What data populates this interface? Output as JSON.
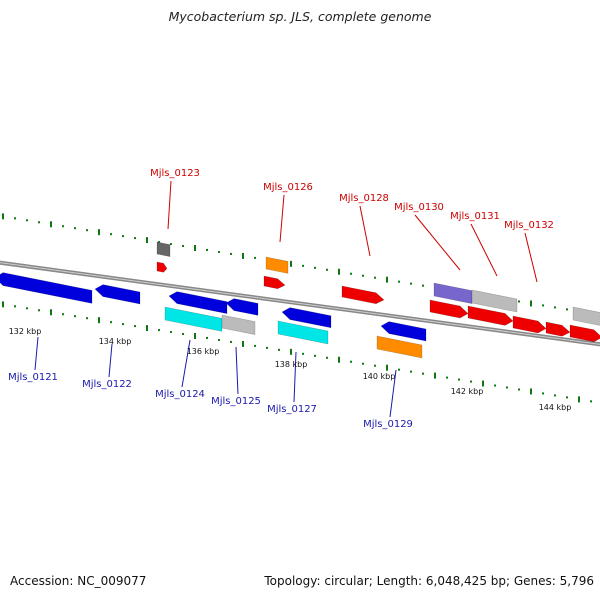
{
  "title": "Mycobacterium sp. JLS, complete genome",
  "footer": {
    "accession": "Accession: NC_009077",
    "summary": "Topology: circular; Length: 6,048,425 bp; Genes: 5,796"
  },
  "colors": {
    "forward_gene": "#ee0000",
    "reverse_gene": "#0000dd",
    "pseudo_gene": "#999999",
    "rna_orange": "#ff8c00",
    "cyan_feature": "#00e5e5",
    "purple_feature": "#7766cc",
    "gc_tick": "#117711",
    "backbone": "#888888",
    "forward_label": "#cc0000",
    "reverse_label": "#1a1aaa"
  },
  "scale_labels": [
    "132 kbp",
    "134 kbp",
    "136 kbp",
    "138 kbp",
    "140 kbp",
    "142 kbp",
    "144 kbp"
  ],
  "forward_labels": [
    "Mjls_0123",
    "Mjls_0126",
    "Mjls_0128",
    "Mjls_0130",
    "Mjls_0131",
    "Mjls_0132"
  ],
  "reverse_labels": [
    "Mjls_0121",
    "Mjls_0122",
    "Mjls_0124",
    "Mjls_0125",
    "Mjls_0127",
    "Mjls_0129"
  ]
}
